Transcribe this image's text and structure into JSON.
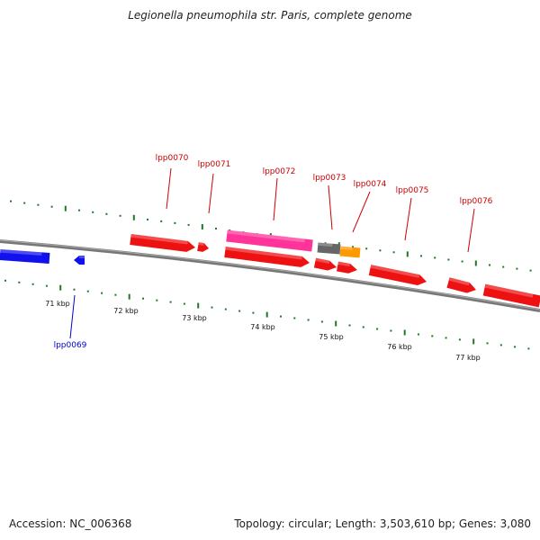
{
  "title": "Legionella pneumophila str. Paris, complete genome",
  "footer": {
    "accession": "Accession: NC_006368",
    "summary": "Topology: circular; Length: 3,503,610 bp; Genes: 3,080"
  },
  "colors": {
    "forward_gene": "#ee1111",
    "reverse_gene": "#1111ee",
    "rrna_gene": "#ff3399",
    "pseudo_gene": "#666666",
    "other_gene": "#ff9900",
    "forward_label": "#cc0000",
    "reverse_label": "#0000cc",
    "tick": "#227722",
    "backbone": "#777777"
  },
  "axis_labels": [
    "71 kbp",
    "72 kbp",
    "73 kbp",
    "74 kbp",
    "75 kbp",
    "76 kbp",
    "77 kbp"
  ],
  "genes": [
    {
      "label": "lpp0069",
      "strand": "reverse"
    },
    {
      "label": "lpp0070",
      "strand": "forward"
    },
    {
      "label": "lpp0071",
      "strand": "forward"
    },
    {
      "label": "lpp0072",
      "strand": "forward"
    },
    {
      "label": "lpp0073",
      "strand": "forward"
    },
    {
      "label": "lpp0074",
      "strand": "forward"
    },
    {
      "label": "lpp0075",
      "strand": "forward"
    },
    {
      "label": "lpp0076",
      "strand": "forward"
    }
  ]
}
